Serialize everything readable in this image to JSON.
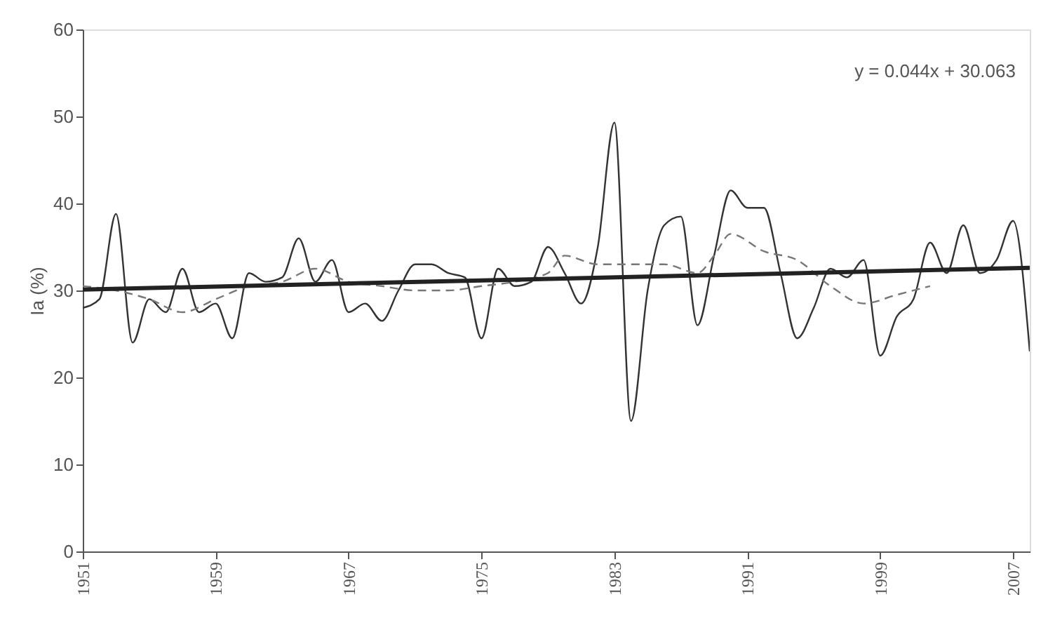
{
  "chart_data": {
    "type": "line",
    "ylabel": "Ia (%)",
    "annotations": [
      "y = 0.044x + 30.063"
    ],
    "xlim": [
      1951,
      2008
    ],
    "xticks": [
      1951,
      1959,
      1967,
      1975,
      1983,
      1991,
      1999,
      2007
    ],
    "ylim": [
      0,
      60
    ],
    "yticks": [
      0,
      10,
      20,
      30,
      40,
      50,
      60
    ],
    "grid": false,
    "series": [
      {
        "color": "#333333",
        "line_style": "solid",
        "x": [
          1951,
          1952,
          1953,
          1954,
          1955,
          1956,
          1957,
          1958,
          1959,
          1960,
          1961,
          1962,
          1963,
          1964,
          1965,
          1966,
          1967,
          1968,
          1969,
          1970,
          1971,
          1972,
          1973,
          1974,
          1975,
          1976,
          1977,
          1978,
          1979,
          1980,
          1981,
          1982,
          1983,
          1984,
          1985,
          1986,
          1987,
          1988,
          1989,
          1990,
          1991,
          1992,
          1993,
          1994,
          1995,
          1996,
          1997,
          1998,
          1999,
          2000,
          2001,
          2002,
          2003,
          2004,
          2005,
          2006,
          2007,
          2008
        ],
        "values": [
          28,
          29,
          38.8,
          24,
          29,
          27.5,
          32.5,
          27.5,
          28.5,
          24.5,
          32,
          31,
          31.5,
          36,
          31,
          33.5,
          27.5,
          28.5,
          26.5,
          30,
          33,
          33,
          32,
          31.5,
          24.5,
          32.5,
          30.5,
          31,
          35,
          32,
          28.5,
          35,
          49.3,
          15,
          30,
          37.5,
          38.5,
          26,
          34,
          41.5,
          39.5,
          39.5,
          32,
          24.5,
          28,
          32.5,
          31.5,
          33.5,
          22.5,
          27,
          29,
          35.5,
          32,
          37.5,
          32,
          33.5,
          38,
          23
        ]
      },
      {
        "color": "#777777",
        "line_style": "dashed",
        "x": [
          1951,
          1953,
          1955,
          1957,
          1959,
          1961,
          1963,
          1965,
          1967,
          1969,
          1971,
          1973,
          1975,
          1977,
          1979,
          1980,
          1982,
          1984,
          1986,
          1988,
          1989,
          1990,
          1992,
          1994,
          1996,
          1998,
          2000,
          2002
        ],
        "values": [
          30.5,
          30,
          29,
          27.5,
          29,
          30.5,
          31,
          32.5,
          31,
          30.5,
          30,
          30,
          30.5,
          31,
          32,
          34,
          33,
          33,
          33,
          32,
          34,
          36.5,
          34.5,
          33.5,
          30.5,
          28.5,
          29.5,
          30.5
        ]
      },
      {
        "color": "#222222",
        "line_style": "solid",
        "x": [
          1951,
          2008
        ],
        "values": [
          30.1,
          32.6
        ]
      }
    ]
  }
}
